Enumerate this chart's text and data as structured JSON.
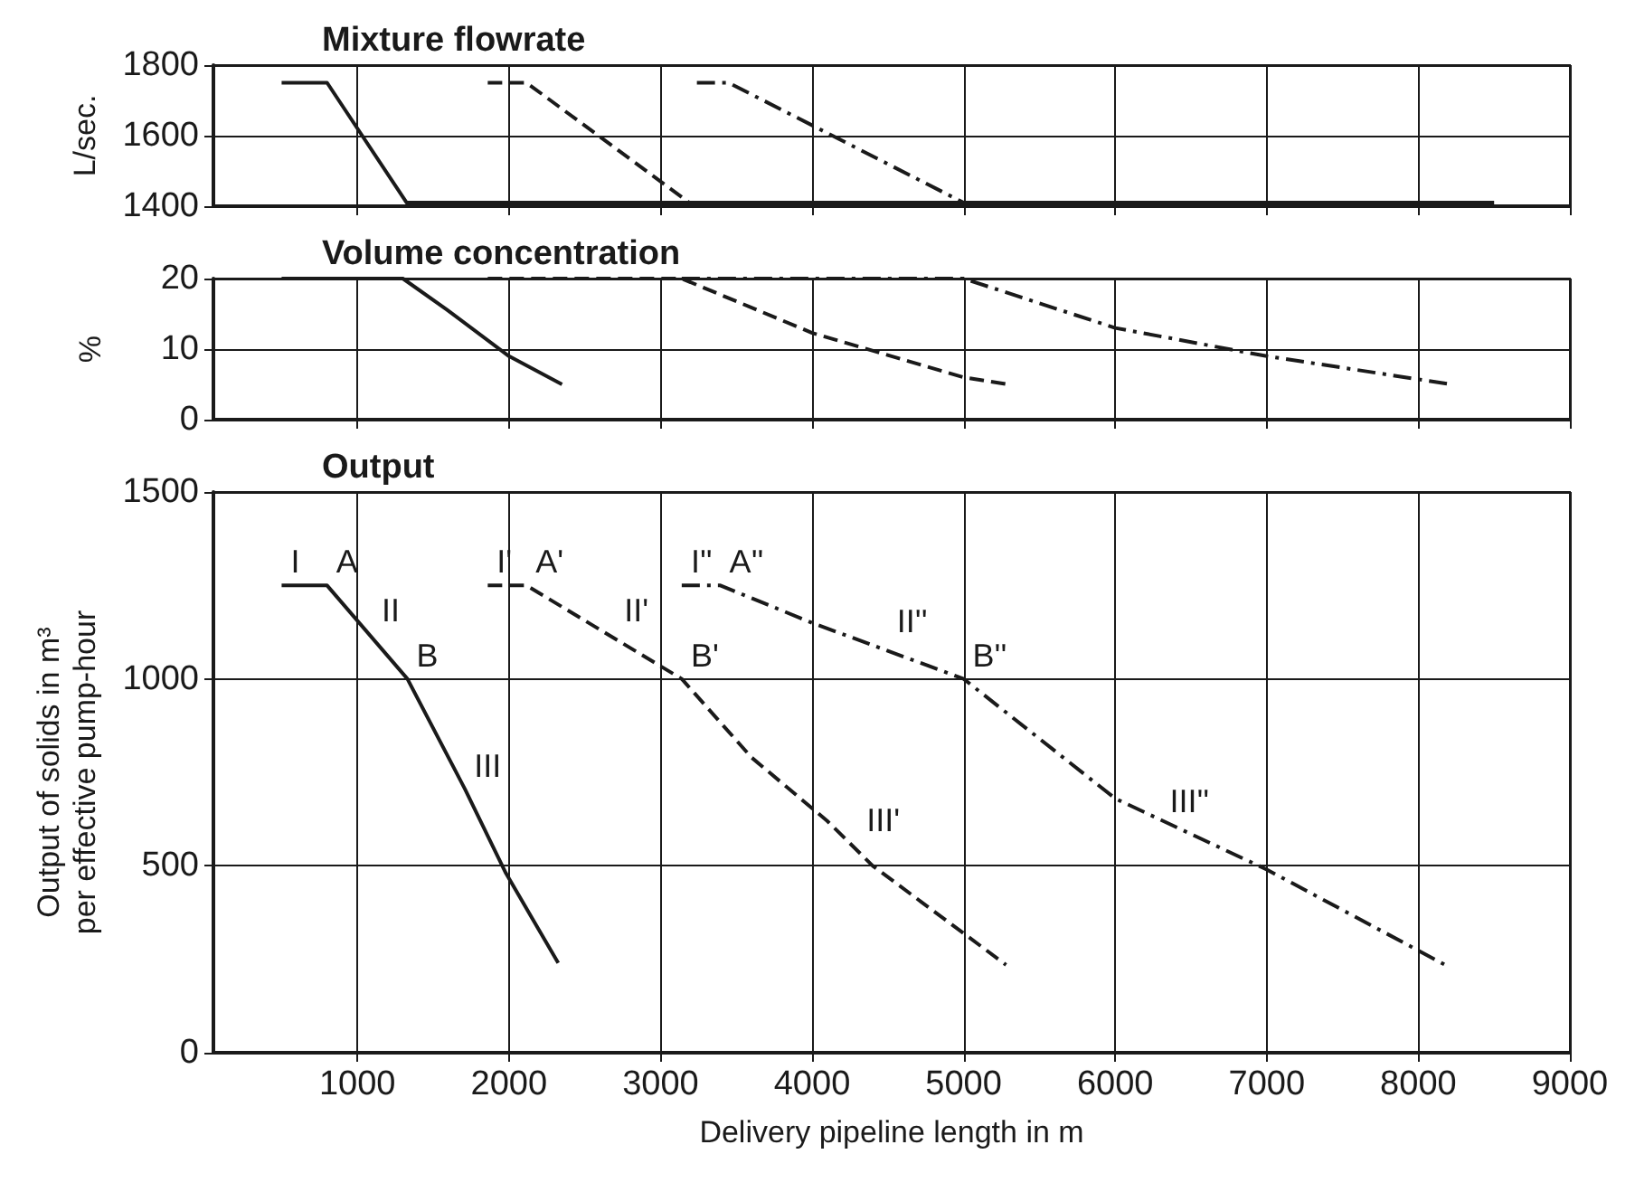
{
  "chart_data": [
    {
      "type": "line",
      "title": "Mixture flowrate",
      "ylabel": "L/sec.",
      "xlim": [
        50,
        9000
      ],
      "xticks": [
        1000,
        2000,
        3000,
        4000,
        5000,
        6000,
        7000,
        8000,
        9000
      ],
      "ylim": [
        1400,
        1800
      ],
      "yticks": [
        1400,
        1600,
        1800
      ],
      "grid": true,
      "tick_labels": "y",
      "series": [
        {
          "color": "#1a1a1a",
          "line_style": "solid",
          "x": [
            500,
            800,
            1325,
            8500
          ],
          "values": [
            1750,
            1750,
            1410,
            1410
          ]
        },
        {
          "color": "#1a1a1a",
          "line_style": "dashed",
          "x": [
            1860,
            2116,
            3190
          ],
          "values": [
            1750,
            1750,
            1410
          ]
        },
        {
          "color": "#1a1a1a",
          "line_style": "dashdot",
          "x": [
            3240,
            3450,
            5000
          ],
          "values": [
            1750,
            1750,
            1410
          ]
        }
      ]
    },
    {
      "type": "line",
      "title": "Volume concentration",
      "ylabel": "%",
      "xlim": [
        50,
        9000
      ],
      "xticks": [
        1000,
        2000,
        3000,
        4000,
        5000,
        6000,
        7000,
        8000,
        9000
      ],
      "ylim": [
        0,
        20
      ],
      "yticks": [
        0,
        10,
        20
      ],
      "grid": true,
      "tick_labels": "y",
      "series": [
        {
          "color": "#1a1a1a",
          "line_style": "solid",
          "x": [
            500,
            1300,
            1590,
            2000,
            2350
          ],
          "values": [
            20,
            20,
            15.6,
            9,
            5
          ]
        },
        {
          "color": "#1a1a1a",
          "line_style": "dashed",
          "x": [
            1860,
            3140,
            4000,
            5000,
            5290
          ],
          "values": [
            20,
            20,
            12.3,
            6,
            5
          ]
        },
        {
          "color": "#1a1a1a",
          "line_style": "dashdot",
          "x": [
            3140,
            5000,
            6000,
            7000,
            8220
          ],
          "values": [
            20,
            20,
            13,
            9,
            5
          ]
        }
      ]
    },
    {
      "type": "line",
      "title": "Output",
      "xlabel": "Delivery pipeline length in m",
      "ylabel": "Output of solids in m³ per effective pump-hour",
      "xlim": [
        50,
        9000
      ],
      "xticks": [
        1000,
        2000,
        3000,
        4000,
        5000,
        6000,
        7000,
        8000,
        9000
      ],
      "ylim": [
        0,
        1500
      ],
      "yticks": [
        0,
        500,
        1000,
        1500
      ],
      "grid": true,
      "series": [
        {
          "color": "#1a1a1a",
          "line_style": "solid",
          "x": [
            500,
            800,
            1330,
            1710,
            1980,
            2325
          ],
          "values": [
            1250,
            1250,
            1000,
            705,
            480,
            240
          ]
        },
        {
          "color": "#1a1a1a",
          "line_style": "dashed",
          "x": [
            1860,
            2116,
            3140,
            3600,
            4100,
            4400,
            5280
          ],
          "values": [
            1250,
            1250,
            1000,
            790,
            620,
            500,
            235
          ]
        },
        {
          "color": "#1a1a1a",
          "line_style": "dashdot",
          "x": [
            3140,
            3395,
            4000,
            5000,
            6000,
            7000,
            8200
          ],
          "values": [
            1250,
            1250,
            1150,
            1000,
            680,
            490,
            230
          ]
        }
      ],
      "annotations": [
        {
          "text": "I",
          "x": 500,
          "y": 1250
        },
        {
          "text": "A",
          "x": 800,
          "y": 1250
        },
        {
          "text": "II",
          "x": 1100,
          "y": 1120
        },
        {
          "text": "B",
          "x": 1330,
          "y": 1000
        },
        {
          "text": "III",
          "x": 1710,
          "y": 705
        },
        {
          "text": "I'",
          "x": 1860,
          "y": 1250
        },
        {
          "text": "A'",
          "x": 2116,
          "y": 1250
        },
        {
          "text": "II'",
          "x": 2700,
          "y": 1120
        },
        {
          "text": "B'",
          "x": 3140,
          "y": 1000
        },
        {
          "text": "III'",
          "x": 4300,
          "y": 560
        },
        {
          "text": "I''",
          "x": 3140,
          "y": 1250
        },
        {
          "text": "A''",
          "x": 3395,
          "y": 1250
        },
        {
          "text": "II''",
          "x": 4500,
          "y": 1090
        },
        {
          "text": "B''",
          "x": 5000,
          "y": 1000
        },
        {
          "text": "III''",
          "x": 6300,
          "y": 610
        }
      ]
    }
  ]
}
